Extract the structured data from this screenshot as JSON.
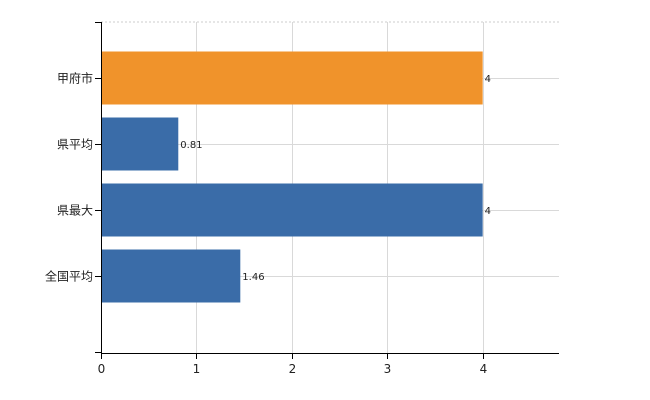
{
  "chart_data": {
    "type": "bar",
    "orientation": "horizontal",
    "categories": [
      "甲府市",
      "県平均",
      "県最大",
      "全国平均"
    ],
    "values": [
      4,
      0.81,
      4,
      1.46
    ],
    "value_labels": [
      "4",
      "0.81",
      "4",
      "1.46"
    ],
    "xlim": [
      0,
      4.8
    ],
    "xticks": [
      0,
      1,
      2,
      3,
      4
    ],
    "xtick_labels": [
      "0",
      "1",
      "2",
      "3",
      "4"
    ],
    "grid": true,
    "title": "",
    "xlabel": "",
    "ylabel": "",
    "colors": [
      "#F0932B",
      "#3A6CA8",
      "#3A6CA8",
      "#3A6CA8"
    ]
  }
}
